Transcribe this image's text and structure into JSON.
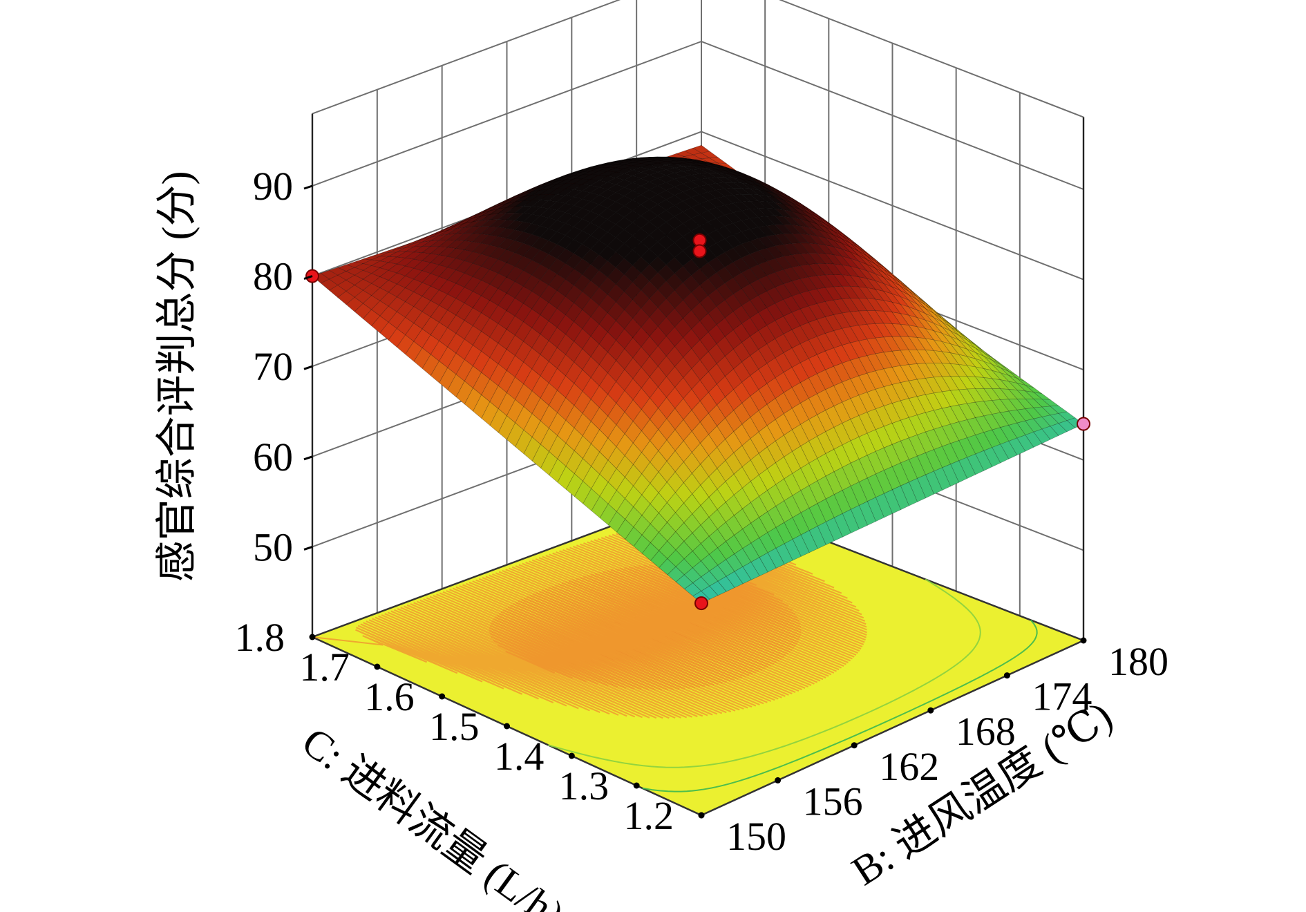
{
  "chart_data": {
    "type": "surface3d",
    "title": "",
    "z_axis": {
      "label": "感官综合评判总分 (分)",
      "ticks": [
        50,
        60,
        70,
        80,
        90
      ],
      "range": [
        40,
        90
      ]
    },
    "b_axis": {
      "label": "B: 进风温度 (℃)",
      "ticks": [
        150,
        156,
        162,
        168,
        174,
        180
      ],
      "range": [
        150,
        180
      ]
    },
    "c_axis": {
      "label": "C: 进料流量 (L/h)",
      "ticks": [
        1.2,
        1.3,
        1.4,
        1.5,
        1.6,
        1.7,
        1.8
      ],
      "range": [
        1.2,
        1.8
      ]
    },
    "surface_corners": [
      {
        "B": 150,
        "C": 1.8,
        "score": 80.0
      },
      {
        "B": 150,
        "C": 1.2,
        "score": 63.5
      },
      {
        "B": 180,
        "C": 1.2,
        "score": 64.0
      },
      {
        "B": 180,
        "C": 1.8,
        "score": 78.5
      }
    ],
    "surface_peak": {
      "B": 158,
      "C": 1.58,
      "score": 86.5
    },
    "design_points": [
      {
        "B": 150,
        "C": 1.8,
        "score": 80.0,
        "color": "#e8141b"
      },
      {
        "B": 165,
        "C": 1.5,
        "score": 85.0,
        "color": "#e8141b"
      },
      {
        "B": 165,
        "C": 1.5,
        "score": 83.8,
        "color": "#e8141b"
      },
      {
        "B": 150,
        "C": 1.2,
        "score": 63.5,
        "color": "#e8141b"
      },
      {
        "B": 180,
        "C": 1.2,
        "score": 64.0,
        "color": "#f08cc8"
      }
    ],
    "floor_color": "#ebf030",
    "grid": true
  }
}
